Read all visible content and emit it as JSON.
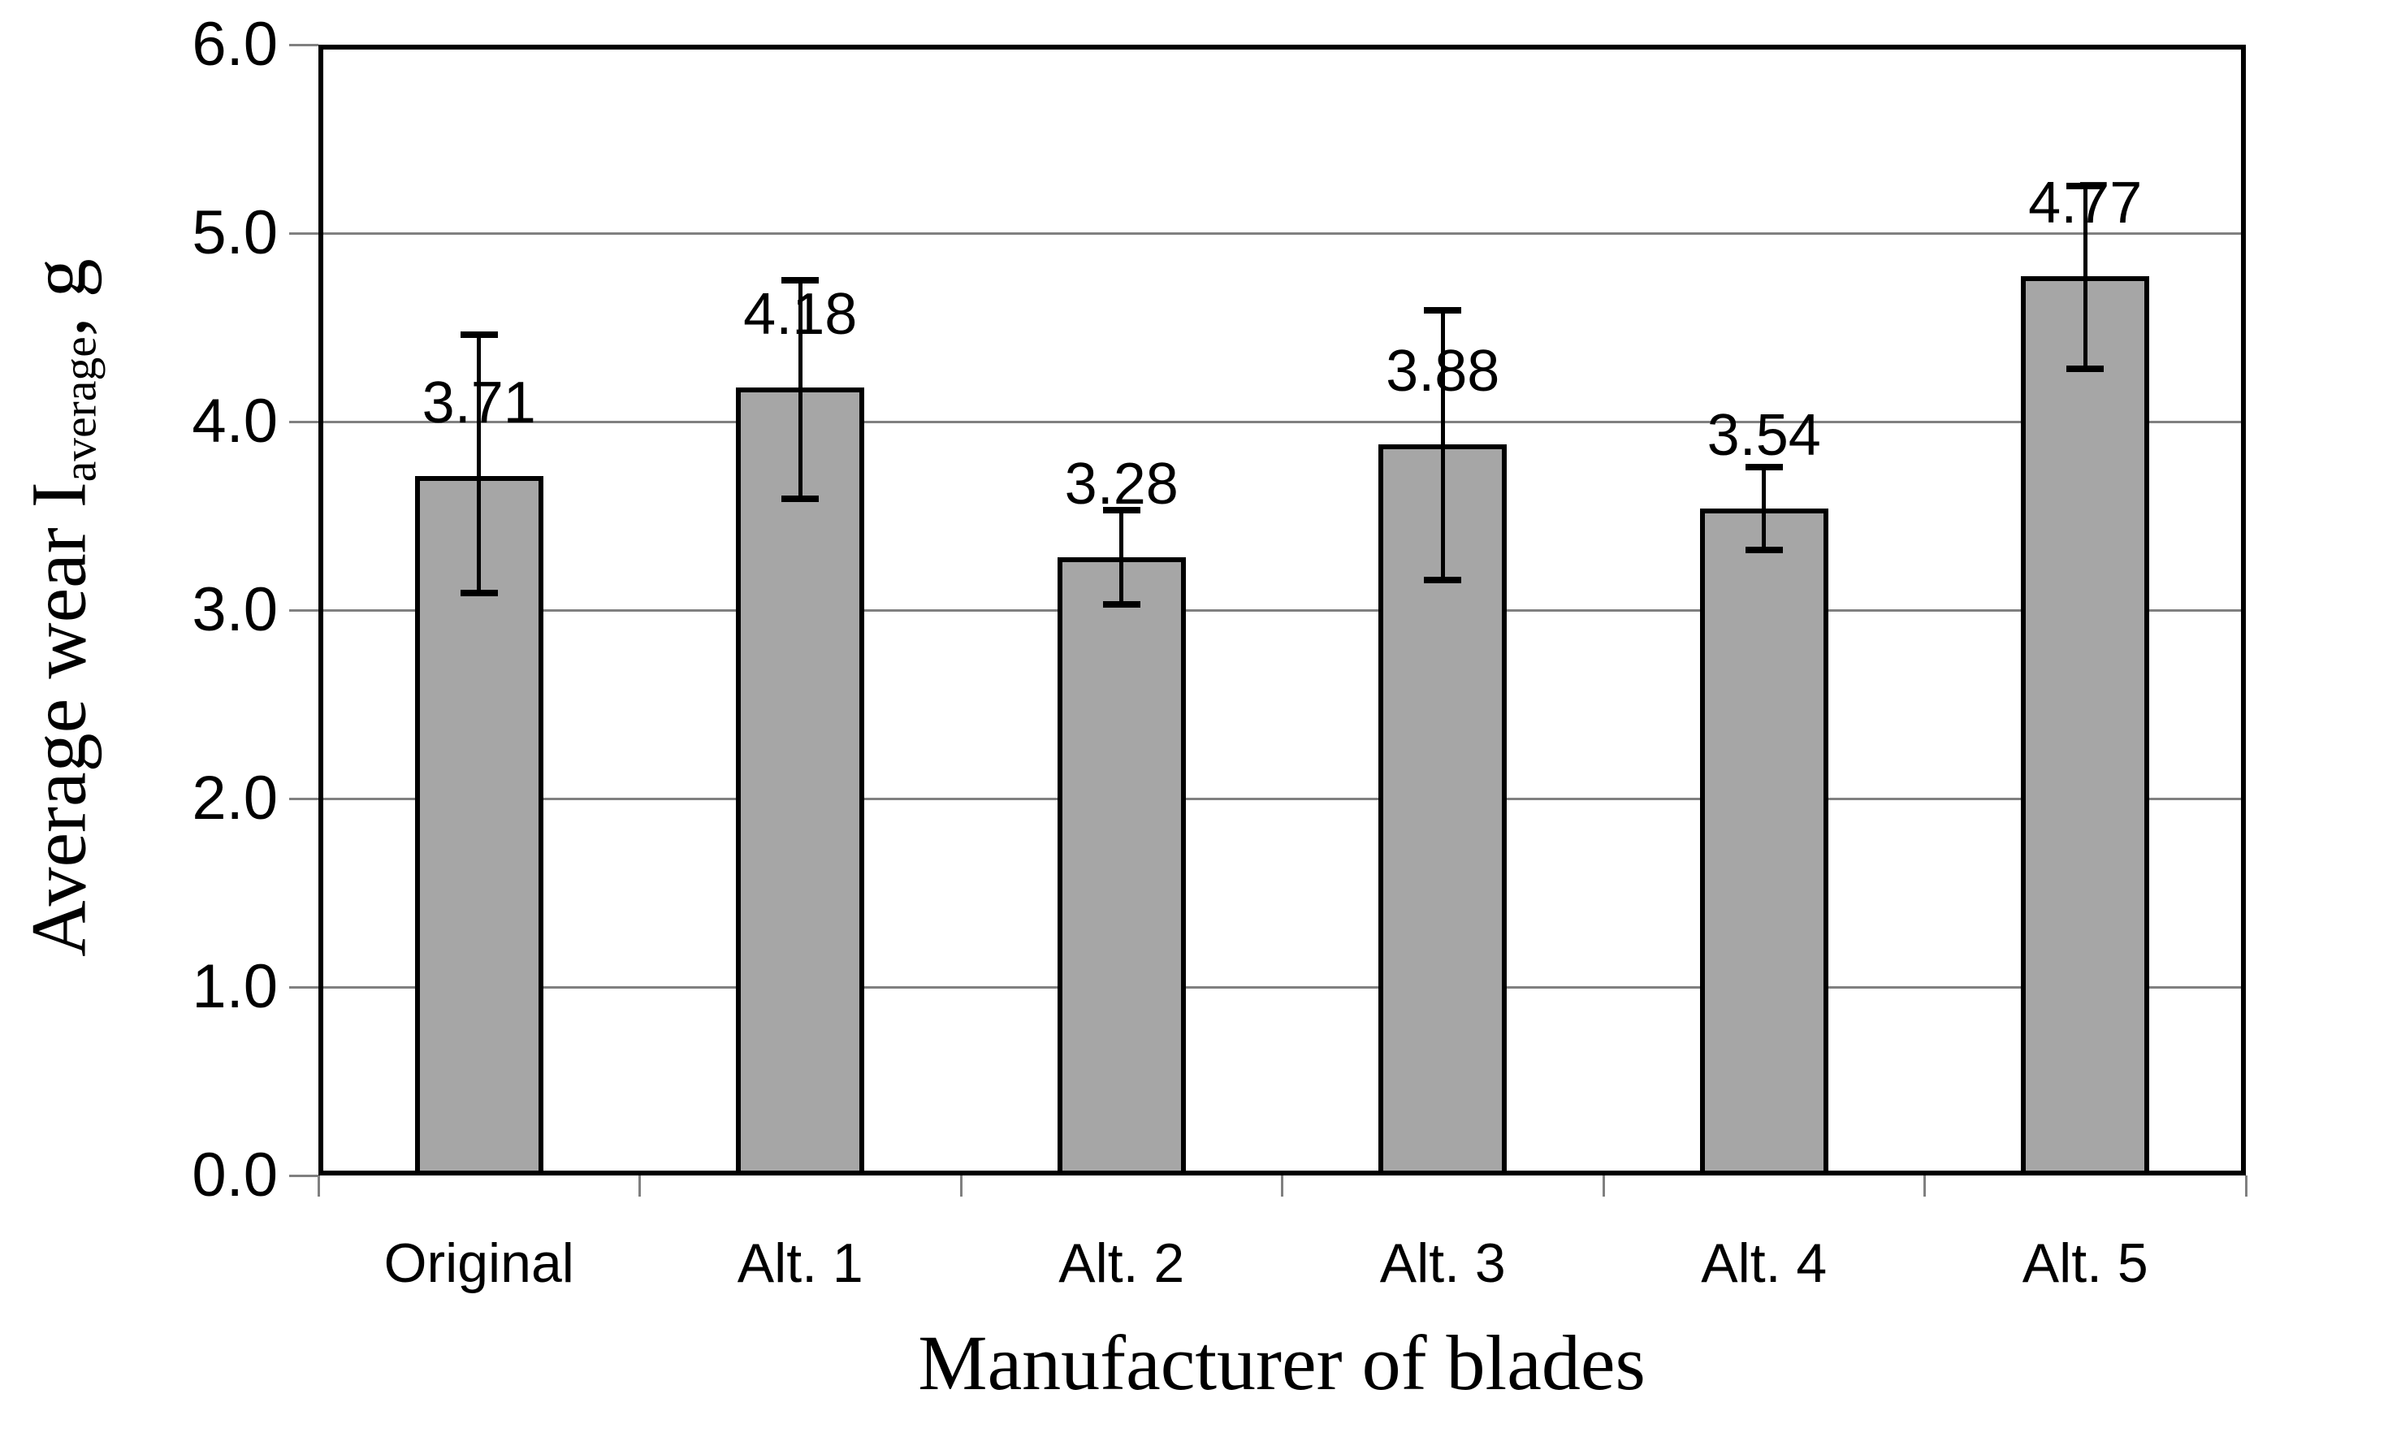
{
  "chart_data": {
    "type": "bar",
    "title": "",
    "categories": [
      "Original",
      "Alt. 1",
      "Alt. 2",
      "Alt. 3",
      "Alt. 4",
      "Alt. 5"
    ],
    "values": [
      3.71,
      4.18,
      3.28,
      3.88,
      3.54,
      4.77
    ],
    "value_labels": [
      "3.71",
      "4.18",
      "3.28",
      "3.88",
      "3.54",
      "4.77"
    ],
    "error_bars": {
      "upper": [
        4.46,
        4.75,
        3.53,
        4.59,
        3.76,
        5.25
      ],
      "lower": [
        3.09,
        3.59,
        3.03,
        3.16,
        3.32,
        4.28
      ]
    },
    "xlabel": "Manufacturer of blades",
    "ylabel": {
      "main": "Average wear I",
      "subscript": "average",
      "suffix": ", g"
    },
    "ylim": [
      0,
      6
    ],
    "ytick_step": 1.0,
    "ytick_labels": [
      "0.0",
      "1.0",
      "2.0",
      "3.0",
      "4.0",
      "5.0",
      "6.0"
    ],
    "grid": true,
    "legend": false,
    "bar_series_name": "Average wear",
    "colors": {
      "bar_fill": "#a6a6a6",
      "bar_border": "#000000",
      "gridline": "#808080",
      "axis_frame": "#000000",
      "text": "#000000",
      "background": "#ffffff"
    }
  }
}
